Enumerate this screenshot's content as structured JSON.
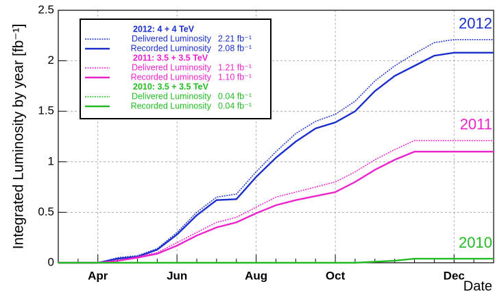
{
  "chart_data": {
    "type": "line",
    "y_label": "Integrated Luminosity by year [fb⁻¹]",
    "x_label": "Date",
    "categories": [
      null,
      null,
      "Apr",
      null,
      null,
      null,
      "Jun",
      null,
      null,
      null,
      "Aug",
      null,
      null,
      null,
      "Oct",
      null,
      null,
      null,
      null,
      null,
      "Dec",
      null,
      null
    ],
    "ylim": [
      0,
      2.5
    ],
    "yticks": [
      0,
      0.5,
      1,
      1.5,
      2,
      2.5
    ],
    "grid": true,
    "legend": "upper left",
    "groups": [
      {
        "title": "2012: 4 + 4 TeV",
        "end_label": "2012",
        "color": "#1a2ecc"
      },
      {
        "title": "2011: 3.5 + 3.5 TeV",
        "end_label": "2011",
        "color": "#ee22cc"
      },
      {
        "title": "2010: 3.5 + 3.5 TeV",
        "end_label": "2010",
        "color": "#22bb22"
      }
    ],
    "series": [
      {
        "name": "Delivered Luminosity",
        "legend_value": "2.21 fb⁻¹",
        "color": "#1a2ecc",
        "style": "dotted",
        "values": [
          0,
          0,
          0,
          0.05,
          0.07,
          0.14,
          0.3,
          0.5,
          0.65,
          0.68,
          0.9,
          1.1,
          1.28,
          1.4,
          1.47,
          1.6,
          1.8,
          1.95,
          2.07,
          2.18,
          2.21,
          2.21,
          2.21
        ]
      },
      {
        "name": "Recorded Luminosity",
        "legend_value": "2.08 fb⁻¹",
        "color": "#1a2ecc",
        "style": "solid",
        "values": [
          0,
          0,
          0,
          0.04,
          0.06,
          0.13,
          0.28,
          0.47,
          0.62,
          0.63,
          0.85,
          1.04,
          1.2,
          1.33,
          1.39,
          1.5,
          1.7,
          1.85,
          1.95,
          2.05,
          2.08,
          2.08,
          2.08
        ]
      },
      {
        "name": "Delivered Luminosity",
        "legend_value": "1.21 fb⁻¹",
        "color": "#ee22cc",
        "style": "dotted",
        "values": [
          0,
          0,
          0,
          0.02,
          0.06,
          0.1,
          0.2,
          0.3,
          0.4,
          0.45,
          0.55,
          0.65,
          0.7,
          0.75,
          0.8,
          0.9,
          1.02,
          1.12,
          1.21,
          1.21,
          1.21,
          1.21,
          1.21
        ]
      },
      {
        "name": "Recorded Luminosity",
        "legend_value": "1.10 fb⁻¹",
        "color": "#ee22cc",
        "style": "solid",
        "values": [
          0,
          0,
          0,
          0.02,
          0.05,
          0.09,
          0.17,
          0.27,
          0.35,
          0.4,
          0.49,
          0.57,
          0.62,
          0.66,
          0.7,
          0.8,
          0.92,
          1.02,
          1.1,
          1.1,
          1.1,
          1.1,
          1.1
        ]
      },
      {
        "name": "Delivered Luminosity",
        "legend_value": "0.04 fb⁻¹",
        "color": "#22bb22",
        "style": "dotted",
        "values": [
          0,
          0,
          0,
          0,
          0,
          0,
          0,
          0,
          0,
          0,
          0,
          0,
          0,
          0,
          0,
          0,
          0.01,
          0.02,
          0.04,
          0.04,
          0.04,
          0.04,
          0.04
        ]
      },
      {
        "name": "Recorded Luminosity",
        "legend_value": "0.04 fb⁻¹",
        "color": "#22bb22",
        "style": "solid",
        "values": [
          0,
          0,
          0,
          0,
          0,
          0,
          0,
          0,
          0,
          0,
          0,
          0,
          0,
          0,
          0,
          0,
          0.01,
          0.02,
          0.04,
          0.04,
          0.04,
          0.04,
          0.04
        ]
      }
    ]
  }
}
